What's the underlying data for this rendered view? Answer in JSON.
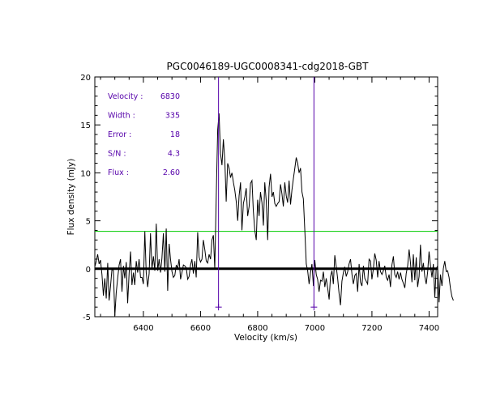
{
  "chart_data": {
    "type": "line",
    "title": "PGC0046189-UGC0008341-cdg2018-GBT",
    "xlabel": "Velocity (km/s)",
    "ylabel": "Flux density (mJy)",
    "xlim": [
      6230,
      7430
    ],
    "ylim": [
      -5,
      20
    ],
    "x_ticks": [
      6400,
      6600,
      6800,
      7000,
      7200,
      7400
    ],
    "y_ticks": [
      -5,
      0,
      5,
      10,
      15,
      20
    ],
    "grid": false,
    "zero_line": 0,
    "threshold_line": 3.9,
    "threshold_color": "#00cc00",
    "marker_color": "#5500aa",
    "marker_velocities": [
      6663,
      6997
    ],
    "marker_range": [
      -4,
      20
    ],
    "annotations": [
      {
        "label": "Velocity :",
        "value": "6830"
      },
      {
        "label": "Width :",
        "value": "335"
      },
      {
        "label": "Error :",
        "value": "18"
      },
      {
        "label": "S/N :",
        "value": "4.3"
      },
      {
        "label": "Flux :",
        "value": "2.60"
      }
    ],
    "annotation_color": "#5500aa",
    "series": [
      {
        "color": "#000000",
        "x_start": 6230,
        "x_step": 5,
        "values": [
          0.2,
          0.8,
          1.5,
          0.5,
          0.9,
          -0.6,
          -2.8,
          -1.0,
          -3.1,
          0.6,
          -3.3,
          -1.8,
          0.0,
          -0.2,
          -4.9,
          -2.5,
          -1.0,
          0.4,
          1.0,
          -2.4,
          0.3,
          -1.0,
          0.7,
          -3.6,
          -0.5,
          1.8,
          -1.7,
          -0.4,
          -1.7,
          0.8,
          -0.4,
          1.0,
          -0.9,
          -0.9,
          -1.6,
          3.9,
          -0.4,
          -1.9,
          -0.5,
          3.7,
          0.0,
          1.3,
          -0.2,
          4.7,
          -0.2,
          1.0,
          -0.4,
          1.1,
          3.7,
          -0.3,
          4.2,
          -2.3,
          2.6,
          1.0,
          -0.3,
          -0.9,
          -0.7,
          0.4,
          0.0,
          1.0,
          -1.1,
          -0.4,
          0.4,
          0.3,
          0.1,
          -1.1,
          -0.8,
          0.4,
          1.0,
          -0.5,
          0.8,
          -0.9,
          3.8,
          1.2,
          0.7,
          1.0,
          3.0,
          2.0,
          0.8,
          0.6,
          1.5,
          1.0,
          3.0,
          3.5,
          0.0,
          7.5,
          14.5,
          16.2,
          12.0,
          10.8,
          13.5,
          11.3,
          7.0,
          11.0,
          10.5,
          9.5,
          10.0,
          9.0,
          8.2,
          7.0,
          5.0,
          7.6,
          9.0,
          4.0,
          6.8,
          7.5,
          8.4,
          5.5,
          6.5,
          8.9,
          9.2,
          6.0,
          4.0,
          3.0,
          7.2,
          5.5,
          8.0,
          6.9,
          4.5,
          9.0,
          7.1,
          3.0,
          8.5,
          9.9,
          7.5,
          8.0,
          6.8,
          6.5,
          6.8,
          7.0,
          8.8,
          7.8,
          6.5,
          9.0,
          7.6,
          6.9,
          9.2,
          6.7,
          8.2,
          9.4,
          10.5,
          11.6,
          11.0,
          10.0,
          10.5,
          8.0,
          7.3,
          4.0,
          0.5,
          -0.2,
          -1.6,
          -0.4,
          0.5,
          -1.8,
          0.9,
          -0.6,
          -1.1,
          -2.4,
          -1.2,
          -1.3,
          -0.3,
          -1.9,
          -1.0,
          -2.0,
          -3.2,
          -0.8,
          -0.2,
          -1.6,
          1.4,
          0.2,
          -1.0,
          -2.6,
          -3.8,
          -1.3,
          -0.4,
          0.2,
          -0.8,
          -0.3,
          0.5,
          1.0,
          -0.6,
          -1.6,
          -0.7,
          -0.5,
          -2.4,
          0.5,
          -1.4,
          -1.8,
          0.3,
          -1.0,
          -1.3,
          -1.6,
          1.0,
          0.8,
          -1.1,
          0.0,
          1.6,
          0.9,
          -0.9,
          0.8,
          -0.3,
          -0.6,
          -0.2,
          0.3,
          -0.9,
          -1.2,
          -0.6,
          -1.9,
          0.4,
          1.3,
          -0.6,
          -0.9,
          -0.3,
          -1.1,
          -0.4,
          -1.1,
          -1.5,
          -2.0,
          -0.5,
          0.3,
          2.0,
          0.6,
          -1.4,
          1.5,
          -1.2,
          1.2,
          -1.9,
          -0.8,
          2.5,
          -0.3,
          0.6,
          -0.8,
          -1.6,
          -0.3,
          1.8,
          0.3,
          -0.9,
          0.5,
          -3.0,
          0.0,
          0.3,
          -3.5,
          -0.6,
          -1.8,
          0.0,
          0.8,
          -0.3,
          -0.2,
          -0.9,
          -2.1,
          -2.9,
          -3.3
        ]
      }
    ]
  }
}
